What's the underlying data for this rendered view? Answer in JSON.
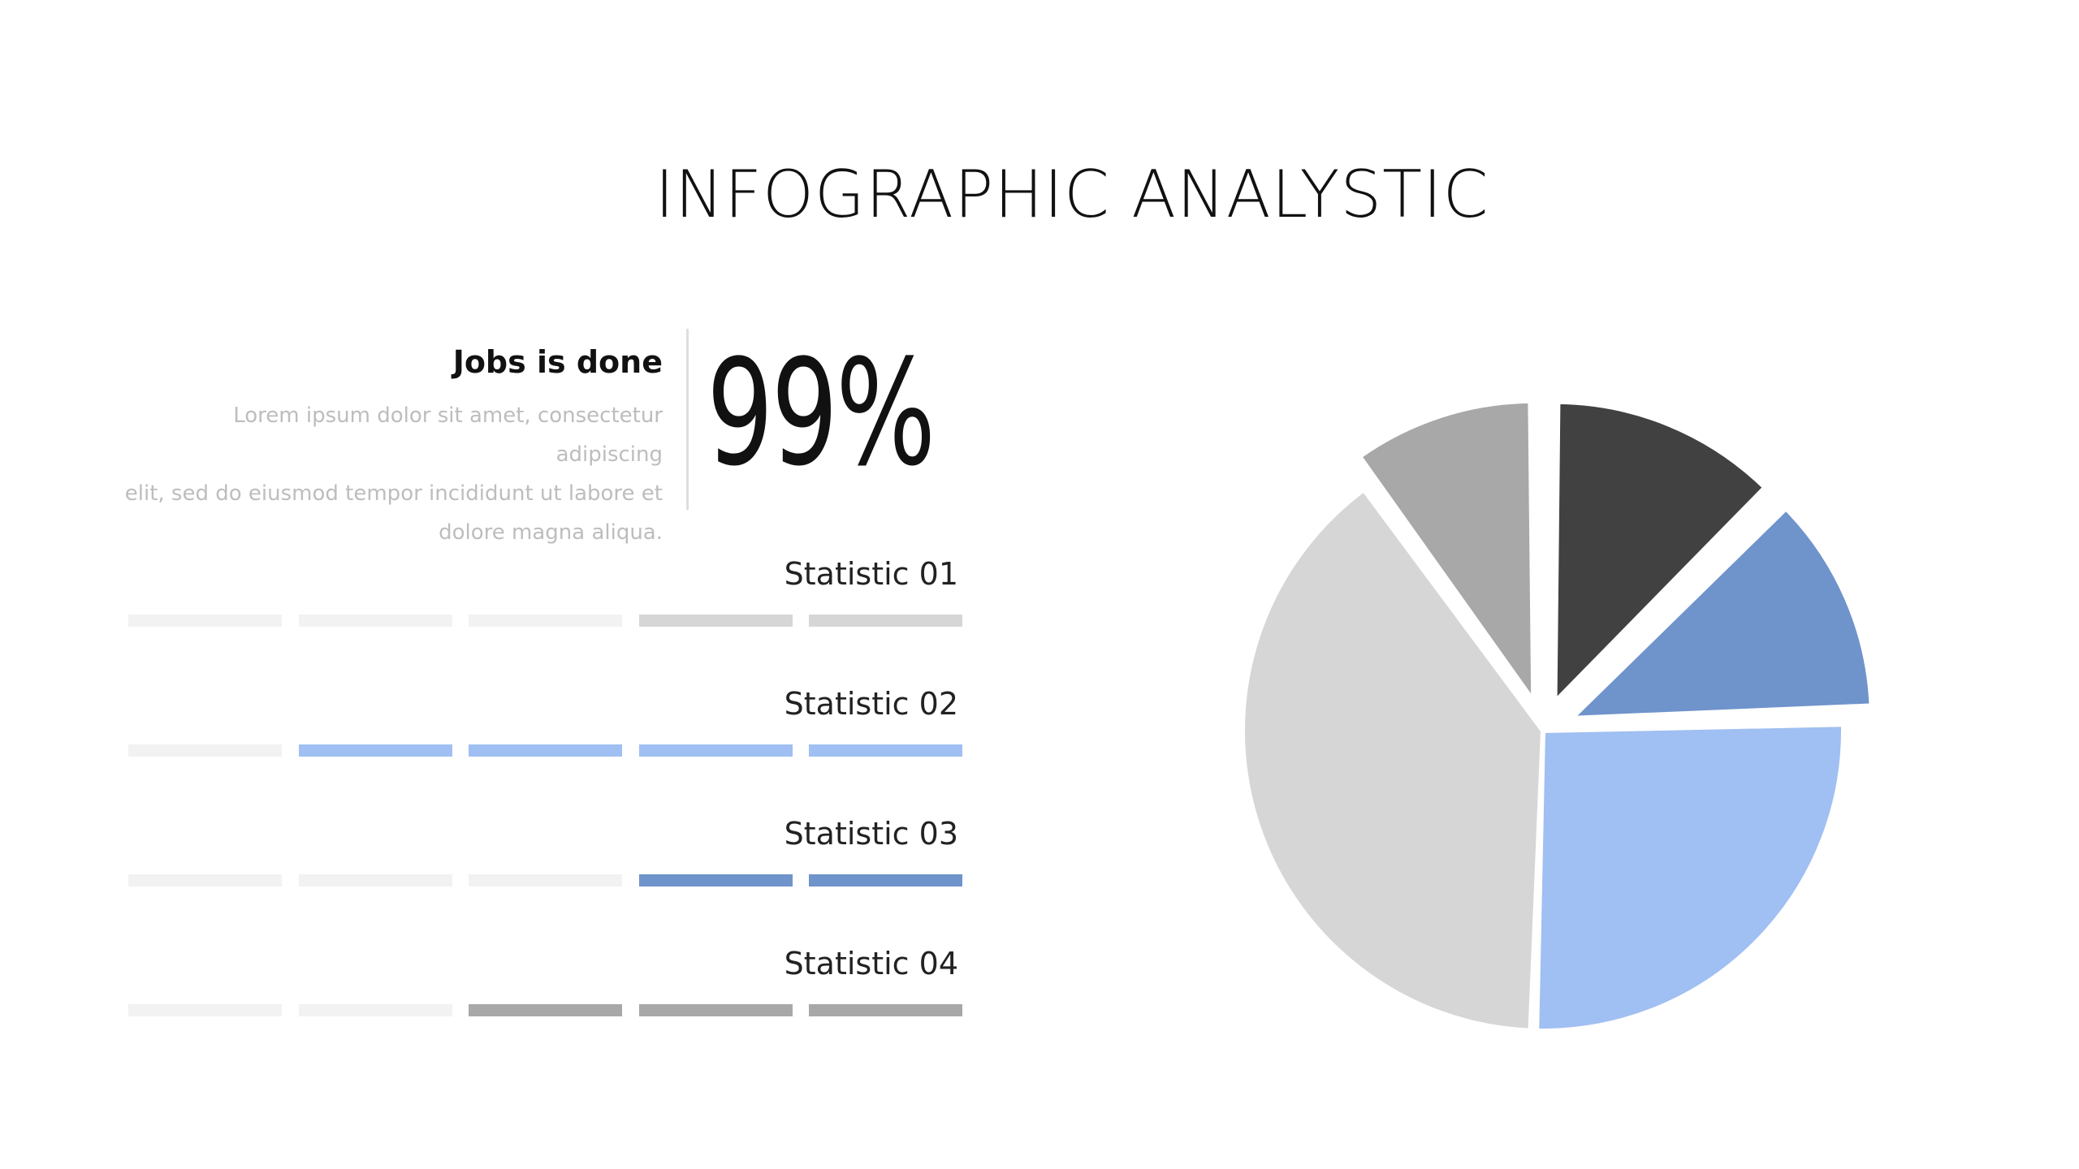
{
  "slide": {
    "title": "INFOGRAPHIC ANALYSTIC"
  },
  "kpi": {
    "heading": "Jobs is done",
    "description_lines": [
      "Lorem ipsum dolor sit amet, consectetur adipiscing",
      "elit, sed do eiusmod tempor incididunt ut labore et",
      "dolore magna aliqua."
    ],
    "value": "99%"
  },
  "colors": {
    "track": "#f2f2f2",
    "light_gray": "#d6d6d6",
    "mid_gray": "#a8a8a8",
    "dark_gray": "#414141",
    "light_blue": "#a0bff2",
    "mid_blue": "#6f93cb"
  },
  "statistics": [
    {
      "label": "Statistic 01",
      "filled": 2,
      "total": 5,
      "color": "#d6d6d6"
    },
    {
      "label": "Statistic 02",
      "filled": 4,
      "total": 5,
      "color": "#a0bff2"
    },
    {
      "label": "Statistic 03",
      "filled": 2,
      "total": 5,
      "color": "#6f93cb"
    },
    {
      "label": "Statistic 04",
      "filled": 3,
      "total": 5,
      "color": "#a8a8a8"
    }
  ],
  "chart_data": {
    "type": "pie",
    "title": "",
    "slices": [
      {
        "value": 10,
        "color": "#a8a8a8",
        "exploded": true
      },
      {
        "value": 12.5,
        "color": "#414141",
        "exploded": true
      },
      {
        "value": 12,
        "color": "#6f93cb",
        "exploded": true
      },
      {
        "value": 26,
        "color": "#a0bff2",
        "exploded": false
      },
      {
        "value": 39.5,
        "color": "#d6d6d6",
        "exploded": false
      }
    ]
  }
}
